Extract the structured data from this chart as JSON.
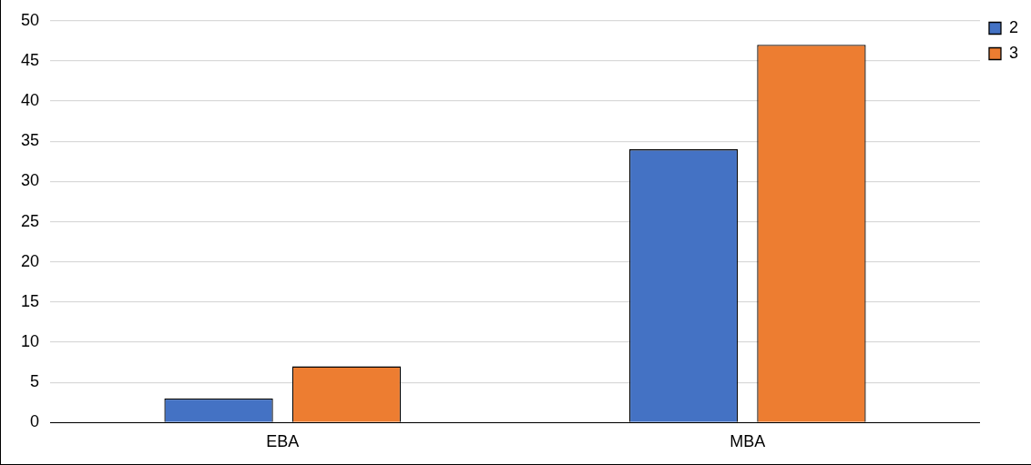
{
  "chart_data": {
    "type": "bar",
    "categories": [
      "EBA",
      "MBA"
    ],
    "series": [
      {
        "name": "2",
        "color": "#4472c4",
        "values": [
          3,
          34
        ]
      },
      {
        "name": "3",
        "color": "#ed7d31",
        "values": [
          7,
          47
        ]
      }
    ],
    "ylim": [
      0,
      50
    ],
    "yticks": [
      0,
      5,
      10,
      15,
      20,
      25,
      30,
      35,
      40,
      45,
      50
    ],
    "grid": "y",
    "legend": "top right"
  }
}
